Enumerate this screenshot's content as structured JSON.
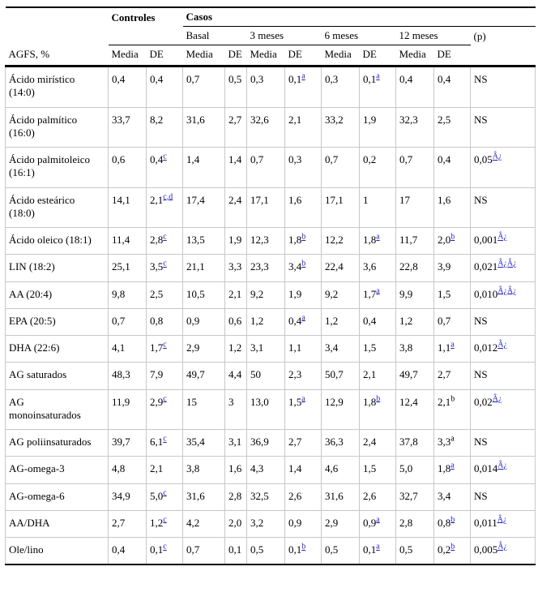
{
  "table": {
    "colors": {
      "link_blue": "#2222CC",
      "grid_gray": "#c8c8c8",
      "rule_black": "#000000"
    },
    "header": {
      "controles_label": "Controles",
      "casos_label": "Casos",
      "periods": [
        "Basal",
        "3 meses",
        "6 meses",
        "12 meses"
      ],
      "p_label": "(p)",
      "row_header": "AGFS, %",
      "media_label": "Media",
      "de_label": "DE"
    },
    "rows": [
      {
        "label": "Ácido mirístico (14:0)",
        "cells": [
          {
            "v": "0,4"
          },
          {
            "v": "0,4"
          },
          {
            "v": "0,7"
          },
          {
            "v": "0,5"
          },
          {
            "v": "0,3"
          },
          {
            "v": "0,1",
            "sup": "a",
            "link": true
          },
          {
            "v": "0,3"
          },
          {
            "v": "0,1",
            "sup": "a",
            "link": true
          },
          {
            "v": "0,4"
          },
          {
            "v": "0,4"
          },
          {
            "v": "NS"
          }
        ]
      },
      {
        "label": "Ácido palmítico (16:0)",
        "cells": [
          {
            "v": "33,7"
          },
          {
            "v": "8,2"
          },
          {
            "v": "31,6"
          },
          {
            "v": "2,7"
          },
          {
            "v": "32,6"
          },
          {
            "v": "2,1"
          },
          {
            "v": "33,2"
          },
          {
            "v": "1,9"
          },
          {
            "v": "32,3"
          },
          {
            "v": "2,5"
          },
          {
            "v": "NS"
          }
        ]
      },
      {
        "label": "Ácido palmitoleico (16:1)",
        "cells": [
          {
            "v": "0,6"
          },
          {
            "v": "0,4",
            "sup": "c",
            "link": true
          },
          {
            "v": "1,4"
          },
          {
            "v": "1,4"
          },
          {
            "v": "0,7"
          },
          {
            "v": "0,3"
          },
          {
            "v": "0,7"
          },
          {
            "v": "0,2"
          },
          {
            "v": "0,7"
          },
          {
            "v": "0,4"
          },
          {
            "v": "0,05",
            "sup": "Â¿",
            "link": true
          }
        ]
      },
      {
        "label": "Ácido esteárico (18:0)",
        "cells": [
          {
            "v": "14,1"
          },
          {
            "v": "2,1",
            "sup": "c,d",
            "link": true
          },
          {
            "v": "17,4"
          },
          {
            "v": "2,4"
          },
          {
            "v": "17,1"
          },
          {
            "v": "1,6"
          },
          {
            "v": "17,1"
          },
          {
            "v": "1"
          },
          {
            "v": "17"
          },
          {
            "v": "1,6"
          },
          {
            "v": "NS"
          }
        ]
      },
      {
        "label": "Ácido oleico (18:1)",
        "cells": [
          {
            "v": "11,4"
          },
          {
            "v": "2,8",
            "sup": "c",
            "link": true
          },
          {
            "v": "13,5"
          },
          {
            "v": "1,9"
          },
          {
            "v": "12,3"
          },
          {
            "v": "1,8",
            "sup": "b",
            "link": true
          },
          {
            "v": "12,2"
          },
          {
            "v": "1,8",
            "sup": "a",
            "link": true
          },
          {
            "v": "11,7"
          },
          {
            "v": "2,0",
            "sup": "b",
            "link": true
          },
          {
            "v": "0,001",
            "sup": "Â¿",
            "link": true
          }
        ]
      },
      {
        "label": "LIN (18:2)",
        "cells": [
          {
            "v": "25,1"
          },
          {
            "v": "3,5",
            "sup": "c",
            "link": true
          },
          {
            "v": "21,1"
          },
          {
            "v": "3,3"
          },
          {
            "v": "23,3"
          },
          {
            "v": "3,4",
            "sup": "b",
            "link": true
          },
          {
            "v": "22,4"
          },
          {
            "v": "3,6"
          },
          {
            "v": "22,8"
          },
          {
            "v": "3,9"
          },
          {
            "v": "0,021",
            "sup": "Â¿Â¿",
            "link": true
          }
        ]
      },
      {
        "label": "AA (20:4)",
        "cells": [
          {
            "v": "9,8"
          },
          {
            "v": "2,5"
          },
          {
            "v": "10,5"
          },
          {
            "v": "2,1"
          },
          {
            "v": "9,2"
          },
          {
            "v": "1,9"
          },
          {
            "v": "9,2"
          },
          {
            "v": "1,7",
            "sup": "a",
            "link": true
          },
          {
            "v": "9,9"
          },
          {
            "v": "1,5"
          },
          {
            "v": "0,010",
            "sup": "Â¿Â¿",
            "link": true
          }
        ]
      },
      {
        "label": "EPA (20:5)",
        "cells": [
          {
            "v": "0,7"
          },
          {
            "v": "0,8"
          },
          {
            "v": "0,9"
          },
          {
            "v": "0,6"
          },
          {
            "v": "1,2"
          },
          {
            "v": "0,4",
            "sup": "a",
            "link": true
          },
          {
            "v": "1,2"
          },
          {
            "v": "0,4"
          },
          {
            "v": "1,2"
          },
          {
            "v": "0,7"
          },
          {
            "v": "NS"
          }
        ]
      },
      {
        "label": "DHA (22:6)",
        "cells": [
          {
            "v": "4,1"
          },
          {
            "v": "1,7",
            "sup": "c",
            "link": true
          },
          {
            "v": "2,9"
          },
          {
            "v": "1,2"
          },
          {
            "v": "3,1"
          },
          {
            "v": "1,1"
          },
          {
            "v": "3,4"
          },
          {
            "v": "1,5"
          },
          {
            "v": "3,8"
          },
          {
            "v": "1,1",
            "sup": "a",
            "link": true
          },
          {
            "v": "0,012",
            "sup": "Â¿",
            "link": true
          }
        ]
      },
      {
        "label": "AG saturados",
        "cells": [
          {
            "v": "48,3"
          },
          {
            "v": "7,9"
          },
          {
            "v": "49,7"
          },
          {
            "v": "4,4"
          },
          {
            "v": "50"
          },
          {
            "v": "2,3"
          },
          {
            "v": "50,7"
          },
          {
            "v": "2,1"
          },
          {
            "v": "49,7"
          },
          {
            "v": "2,7"
          },
          {
            "v": "NS"
          }
        ]
      },
      {
        "label": "AG monoinsaturados",
        "cells": [
          {
            "v": "11,9"
          },
          {
            "v": "2,9",
            "sup": "c",
            "link": true
          },
          {
            "v": "15"
          },
          {
            "v": "3"
          },
          {
            "v": "13,0"
          },
          {
            "v": "1,5",
            "sup": "a",
            "link": true
          },
          {
            "v": "12,9"
          },
          {
            "v": "1,8",
            "sup": "b",
            "link": true
          },
          {
            "v": "12,4"
          },
          {
            "v": "2,1",
            "sup": "b",
            "link": false
          },
          {
            "v": "0,02",
            "sup": "Â¿",
            "link": true
          }
        ]
      },
      {
        "label": "AG poliinsaturados",
        "cells": [
          {
            "v": "39,7"
          },
          {
            "v": "6,1",
            "sup": "c",
            "link": true
          },
          {
            "v": "35,4"
          },
          {
            "v": "3,1"
          },
          {
            "v": "36,9"
          },
          {
            "v": "2,7"
          },
          {
            "v": "36,3"
          },
          {
            "v": "2,4"
          },
          {
            "v": "37,8"
          },
          {
            "v": "3,3",
            "sup": "a",
            "link": false
          },
          {
            "v": "NS"
          }
        ]
      },
      {
        "label": "AG-omega-3",
        "cells": [
          {
            "v": "4,8"
          },
          {
            "v": "2,1"
          },
          {
            "v": "3,8"
          },
          {
            "v": "1,6"
          },
          {
            "v": "4,3"
          },
          {
            "v": "1,4"
          },
          {
            "v": "4,6"
          },
          {
            "v": "1,5"
          },
          {
            "v": "5,0"
          },
          {
            "v": "1,8",
            "sup": "a",
            "link": true
          },
          {
            "v": "0,014",
            "sup": "Â¿",
            "link": true
          }
        ]
      },
      {
        "label": "AG-omega-6",
        "cells": [
          {
            "v": "34,9"
          },
          {
            "v": "5,0",
            "sup": "c",
            "link": true
          },
          {
            "v": "31,6"
          },
          {
            "v": "2,8"
          },
          {
            "v": "32,5"
          },
          {
            "v": "2,6"
          },
          {
            "v": "31,6"
          },
          {
            "v": "2,6"
          },
          {
            "v": "32,7"
          },
          {
            "v": "3,4"
          },
          {
            "v": "NS"
          }
        ]
      },
      {
        "label": "AA/DHA",
        "cells": [
          {
            "v": "2,7"
          },
          {
            "v": "1,2",
            "sup": "c",
            "link": true
          },
          {
            "v": "4,2"
          },
          {
            "v": "2,0"
          },
          {
            "v": "3,2"
          },
          {
            "v": "0,9"
          },
          {
            "v": "2,9"
          },
          {
            "v": "0,9",
            "sup": "a",
            "link": true
          },
          {
            "v": "2,8"
          },
          {
            "v": "0,8",
            "sup": "b",
            "link": true
          },
          {
            "v": "0,011",
            "sup": "Â¿",
            "link": true
          }
        ]
      },
      {
        "label": "Ole/lino",
        "cells": [
          {
            "v": "0,4"
          },
          {
            "v": "0,1",
            "sup": "c",
            "link": true
          },
          {
            "v": "0,7"
          },
          {
            "v": "0,1"
          },
          {
            "v": "0,5"
          },
          {
            "v": "0,1",
            "sup": "b",
            "link": true
          },
          {
            "v": "0,5"
          },
          {
            "v": "0,1",
            "sup": "a",
            "link": true
          },
          {
            "v": "0,5"
          },
          {
            "v": "0,2",
            "sup": "b",
            "link": true
          },
          {
            "v": "0,005",
            "sup": "Â¿",
            "link": true
          }
        ]
      }
    ]
  }
}
